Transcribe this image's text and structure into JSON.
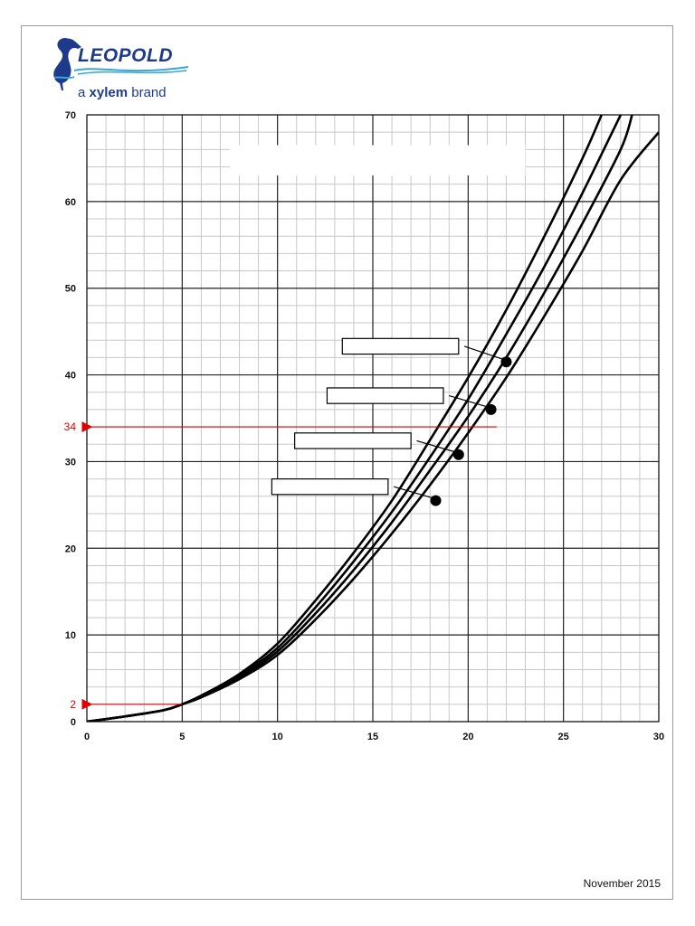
{
  "brand": {
    "name": "LEOPOLD",
    "tagline_prefix": "a ",
    "tagline_strong": "xylem",
    "tagline_suffix": " brand",
    "logo_icon": "heron-icon",
    "color": "#1e3a8a",
    "accent": "#3aa6d8"
  },
  "footer": {
    "date": "November 2015"
  },
  "chart_data": {
    "type": "line",
    "title": "",
    "xlabel": "",
    "ylabel": "",
    "xlim": [
      0,
      30
    ],
    "ylim": [
      0,
      70
    ],
    "x_ticks": [
      0,
      5,
      10,
      15,
      20,
      25,
      30
    ],
    "y_ticks": [
      0,
      10,
      20,
      30,
      40,
      50,
      60,
      70
    ],
    "grid": true,
    "grid_minor_x": 1,
    "grid_minor_y": 2,
    "series": [
      {
        "points": [
          [
            0,
            0
          ],
          [
            2,
            0.6
          ],
          [
            4,
            1.3
          ],
          [
            5,
            2
          ],
          [
            6,
            3
          ],
          [
            8,
            5.5
          ],
          [
            10,
            9
          ],
          [
            12,
            14
          ],
          [
            14,
            19.5
          ],
          [
            16,
            25.5
          ],
          [
            18,
            32.5
          ],
          [
            20,
            39.7
          ],
          [
            22,
            47.5
          ],
          [
            24,
            56
          ],
          [
            26,
            65
          ],
          [
            27,
            70
          ]
        ]
      },
      {
        "points": [
          [
            0,
            0
          ],
          [
            2,
            0.6
          ],
          [
            4,
            1.3
          ],
          [
            5,
            2
          ],
          [
            6,
            3
          ],
          [
            8,
            5.3
          ],
          [
            10,
            8.5
          ],
          [
            12,
            13.2
          ],
          [
            14,
            18.5
          ],
          [
            16,
            24.2
          ],
          [
            18,
            30.5
          ],
          [
            20,
            37.2
          ],
          [
            22,
            44.7
          ],
          [
            24,
            52.5
          ],
          [
            26,
            61
          ],
          [
            28,
            70
          ]
        ]
      },
      {
        "points": [
          [
            0,
            0
          ],
          [
            2,
            0.6
          ],
          [
            4,
            1.3
          ],
          [
            5,
            2
          ],
          [
            6,
            2.9
          ],
          [
            8,
            5.1
          ],
          [
            10,
            8.1
          ],
          [
            12,
            12.5
          ],
          [
            14,
            17.5
          ],
          [
            16,
            23
          ],
          [
            18,
            29
          ],
          [
            20,
            35.2
          ],
          [
            22,
            42
          ],
          [
            24,
            49.5
          ],
          [
            26,
            57.5
          ],
          [
            28,
            66
          ],
          [
            28.6,
            70
          ]
        ]
      },
      {
        "points": [
          [
            0,
            0
          ],
          [
            2,
            0.6
          ],
          [
            4,
            1.3
          ],
          [
            5,
            2
          ],
          [
            6,
            2.8
          ],
          [
            8,
            4.9
          ],
          [
            10,
            7.7
          ],
          [
            12,
            11.8
          ],
          [
            14,
            16.5
          ],
          [
            16,
            21.7
          ],
          [
            18,
            27.3
          ],
          [
            20,
            33.3
          ],
          [
            22,
            39.7
          ],
          [
            24,
            46.8
          ],
          [
            26,
            54.3
          ],
          [
            28,
            62.5
          ],
          [
            30,
            68
          ]
        ]
      }
    ],
    "points": [
      {
        "x": 22,
        "y": 41.5
      },
      {
        "x": 21.2,
        "y": 36
      },
      {
        "x": 19.5,
        "y": 30.8
      },
      {
        "x": 18.3,
        "y": 25.5
      }
    ],
    "markers": [
      {
        "label": "34",
        "y": 34,
        "x_from": 21.5,
        "color": "#e00000"
      },
      {
        "label": "2",
        "y": 2,
        "x_from": 5,
        "color": "#e00000"
      }
    ]
  }
}
